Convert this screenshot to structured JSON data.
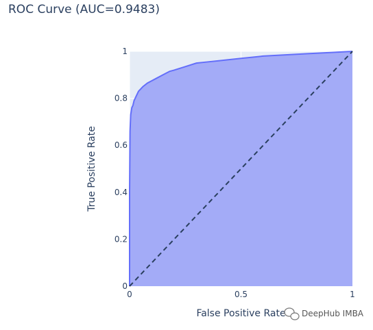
{
  "chart_data": {
    "type": "area",
    "title": "ROC Curve (AUC=0.9483)",
    "xlabel": "False Positive Rate",
    "ylabel": "True Positive Rate",
    "xlim": [
      0,
      1
    ],
    "ylim": [
      0,
      1
    ],
    "xticks": [
      "0",
      "0.5",
      "1"
    ],
    "yticks": [
      "0",
      "0.2",
      "0.4",
      "0.6",
      "0.8",
      "1"
    ],
    "grid": true,
    "legend": "none",
    "series": [
      {
        "x": [
          0,
          0.0,
          0.002,
          0.005,
          0.01,
          0.015,
          0.02,
          0.03,
          0.04,
          0.05,
          0.06,
          0.08,
          0.1,
          0.12,
          0.15,
          0.18,
          0.2,
          0.25,
          0.3,
          0.35,
          0.4,
          0.45,
          0.5,
          0.55,
          0.6,
          0.7,
          0.8,
          0.9,
          1.0
        ],
        "y": [
          0,
          0.4,
          0.66,
          0.73,
          0.76,
          0.77,
          0.79,
          0.81,
          0.83,
          0.84,
          0.85,
          0.865,
          0.875,
          0.885,
          0.9,
          0.915,
          0.92,
          0.935,
          0.95,
          0.955,
          0.96,
          0.965,
          0.97,
          0.975,
          0.98,
          0.985,
          0.99,
          0.995,
          1.0
        ]
      },
      {
        "x": [
          0,
          1
        ],
        "y": [
          0,
          1
        ]
      }
    ],
    "colors": {
      "fill": "#a3abf7",
      "line": "#636efa",
      "plot_bg": "#e5ecf6",
      "diagonal": "#2a3f5f",
      "text": "#2a3f5f"
    }
  },
  "watermark": {
    "text": "DeepHub IMBA",
    "icon": "wechat-icon"
  }
}
